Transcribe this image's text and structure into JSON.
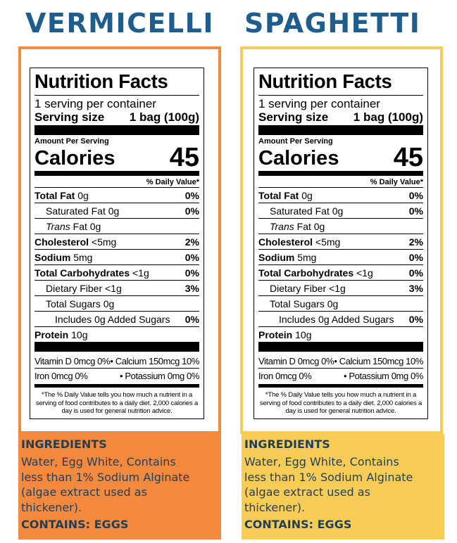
{
  "colors": {
    "title": "#1f5e8c",
    "vermicelli_accent": "#f58a3f",
    "spaghetti_accent": "#f9cd55",
    "ingredient_text": "#1e3f5a"
  },
  "products": [
    {
      "name": "VERMICELLI",
      "label": {
        "title": "Nutrition Facts",
        "servings": "1 serving per container",
        "serving_size_label": "Serving size",
        "serving_size_value": "1 bag (100g)",
        "amount_per_serving": "Amount Per Serving",
        "calories_label": "Calories",
        "calories_value": "45",
        "dv_header": "% Daily Value*",
        "rows": [
          {
            "name": "Total Fat",
            "amount": "0g",
            "dv": "0%"
          },
          {
            "name": "Saturated Fat",
            "amount": "0g",
            "dv": "0%"
          },
          {
            "name": "Trans",
            "amount": "Fat 0g",
            "dv": ""
          },
          {
            "name": "Cholesterol",
            "amount": "<5mg",
            "dv": "2%"
          },
          {
            "name": "Sodium",
            "amount": "5mg",
            "dv": "0%"
          },
          {
            "name": "Total Carbohydrates",
            "amount": "<1g",
            "dv": "0%"
          },
          {
            "name": "Dietary Fiber",
            "amount": "<1g",
            "dv": "3%"
          },
          {
            "name": "Total Sugars",
            "amount": "0g",
            "dv": ""
          },
          {
            "name": "Includes 0g Added Sugars",
            "amount": "",
            "dv": "0%"
          },
          {
            "name": "Protein",
            "amount": "10g",
            "dv": ""
          }
        ],
        "vitamins": [
          {
            "left": "Vitamin D 0mcg 0%",
            "right": "• Calcium 150mcg 10%"
          },
          {
            "left": "Iron 0mcg 0%",
            "right": "• Potassium 0mg 0%"
          }
        ],
        "footnote": "*The % Daily Value tells you how much a nutrient in a serving of food contributes to a daily diet. 2,000 calories a day is used for general nutrition advice."
      },
      "ingredients_heading": "INGREDIENTS",
      "ingredients_lines": [
        "Water, Egg White, Contains",
        "less than 1% Sodium Alginate",
        "(algae extract used as",
        "thickener)."
      ],
      "contains": "CONTAINS: EGGS"
    },
    {
      "name": "SPAGHETTI",
      "label": {
        "title": "Nutrition Facts",
        "servings": "1 serving per container",
        "serving_size_label": "Serving size",
        "serving_size_value": "1 bag (100g)",
        "amount_per_serving": "Amount Per Serving",
        "calories_label": "Calories",
        "calories_value": "45",
        "dv_header": "% Daily Value*",
        "rows": [
          {
            "name": "Total Fat",
            "amount": "0g",
            "dv": "0%"
          },
          {
            "name": "Saturated Fat",
            "amount": "0g",
            "dv": "0%"
          },
          {
            "name": "Trans",
            "amount": "Fat 0g",
            "dv": ""
          },
          {
            "name": "Cholesterol",
            "amount": "<5mg",
            "dv": "2%"
          },
          {
            "name": "Sodium",
            "amount": "5mg",
            "dv": "0%"
          },
          {
            "name": "Total Carbohydrates",
            "amount": "<1g",
            "dv": "0%"
          },
          {
            "name": "Dietary Fiber",
            "amount": "<1g",
            "dv": "3%"
          },
          {
            "name": "Total Sugars",
            "amount": "0g",
            "dv": ""
          },
          {
            "name": "Includes 0g Added Sugars",
            "amount": "",
            "dv": "0%"
          },
          {
            "name": "Protein",
            "amount": "10g",
            "dv": ""
          }
        ],
        "vitamins": [
          {
            "left": "Vitamin D 0mcg 0%",
            "right": "• Calcium 150mcg 10%"
          },
          {
            "left": "Iron 0mcg 0%",
            "right": "• Potassium 0mg 0%"
          }
        ],
        "footnote": "*The % Daily Value tells you how much a nutrient in a serving of food contributes to a daily diet. 2,000 calories a day is used for general nutrition advice."
      },
      "ingredients_heading": "INGREDIENTS",
      "ingredients_lines": [
        "Water, Egg White, Contains",
        "less than 1% Sodium Alginate",
        "(algae extract used as",
        "thickener)."
      ],
      "contains": "CONTAINS: EGGS"
    }
  ]
}
